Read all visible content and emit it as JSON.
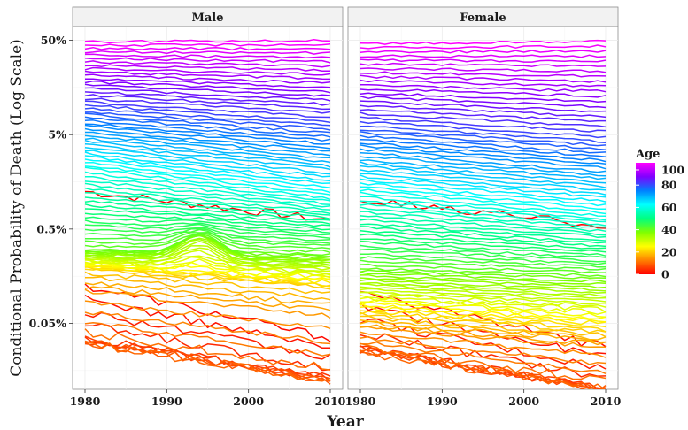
{
  "chart_data": {
    "type": "line",
    "facets": [
      "Male",
      "Female"
    ],
    "xlabel": "Year",
    "ylabel": "Conditional Probability of Death (Log Scale)",
    "x_ticks": [
      1980,
      1990,
      2000,
      2010
    ],
    "xlim": [
      1980,
      2010
    ],
    "y_scale": "log",
    "ylim": [
      0.0001,
      0.7
    ],
    "y_ticks": [
      {
        "value": 0.5,
        "label": "50%"
      },
      {
        "value": 0.05,
        "label": "5%"
      },
      {
        "value": 0.005,
        "label": "0.5%"
      },
      {
        "value": 0.0005,
        "label": "0.05%"
      }
    ],
    "color_by": "Age",
    "legend": {
      "title": "Age",
      "placement": "right",
      "ticks": [
        100,
        80,
        60,
        40,
        20,
        0
      ],
      "colors": [
        "#ff00ff",
        "#8000ff",
        "#0080ff",
        "#00ffff",
        "#00ff80",
        "#80ff00",
        "#ffff00",
        "#ff8000",
        "#ff0000"
      ]
    },
    "ages": {
      "from": 0,
      "to": 100
    },
    "series_summary": {
      "Male": [
        {
          "age": 0,
          "1980": 0.0125,
          "2010": 0.0062
        },
        {
          "age": 1,
          "1980": 0.00125,
          "2010": 0.00035
        },
        {
          "age": 5,
          "1980": 0.00035,
          "2010": 0.00013
        },
        {
          "age": 10,
          "1980": 0.00031,
          "2010": 0.00012
        },
        {
          "age": 15,
          "1980": 0.0011,
          "2010": 0.0006
        },
        {
          "age": 20,
          "1980": 0.0019,
          "2010": 0.0012
        },
        {
          "age": 40,
          "1980": 0.003,
          "2010": 0.0027
        },
        {
          "age": 60,
          "1980": 0.022,
          "2010": 0.0105
        },
        {
          "age": 80,
          "1980": 0.095,
          "2010": 0.062
        },
        {
          "age": 100,
          "1980": 0.48,
          "2010": 0.5
        }
      ],
      "Female": [
        {
          "age": 0,
          "1980": 0.01,
          "2010": 0.0055
        },
        {
          "age": 1,
          "1980": 0.00105,
          "2010": 0.00028
        },
        {
          "age": 5,
          "1980": 0.00028,
          "2010": 0.0001
        },
        {
          "age": 10,
          "1980": 0.00025,
          "2010": 0.0001
        },
        {
          "age": 15,
          "1980": 0.00045,
          "2010": 0.00028
        },
        {
          "age": 20,
          "1980": 0.00062,
          "2010": 0.0004
        },
        {
          "age": 40,
          "1980": 0.0019,
          "2010": 0.0016
        },
        {
          "age": 60,
          "1980": 0.012,
          "2010": 0.0068
        },
        {
          "age": 80,
          "1980": 0.062,
          "2010": 0.042
        },
        {
          "age": 100,
          "1980": 0.46,
          "2010": 0.49
        }
      ]
    }
  }
}
